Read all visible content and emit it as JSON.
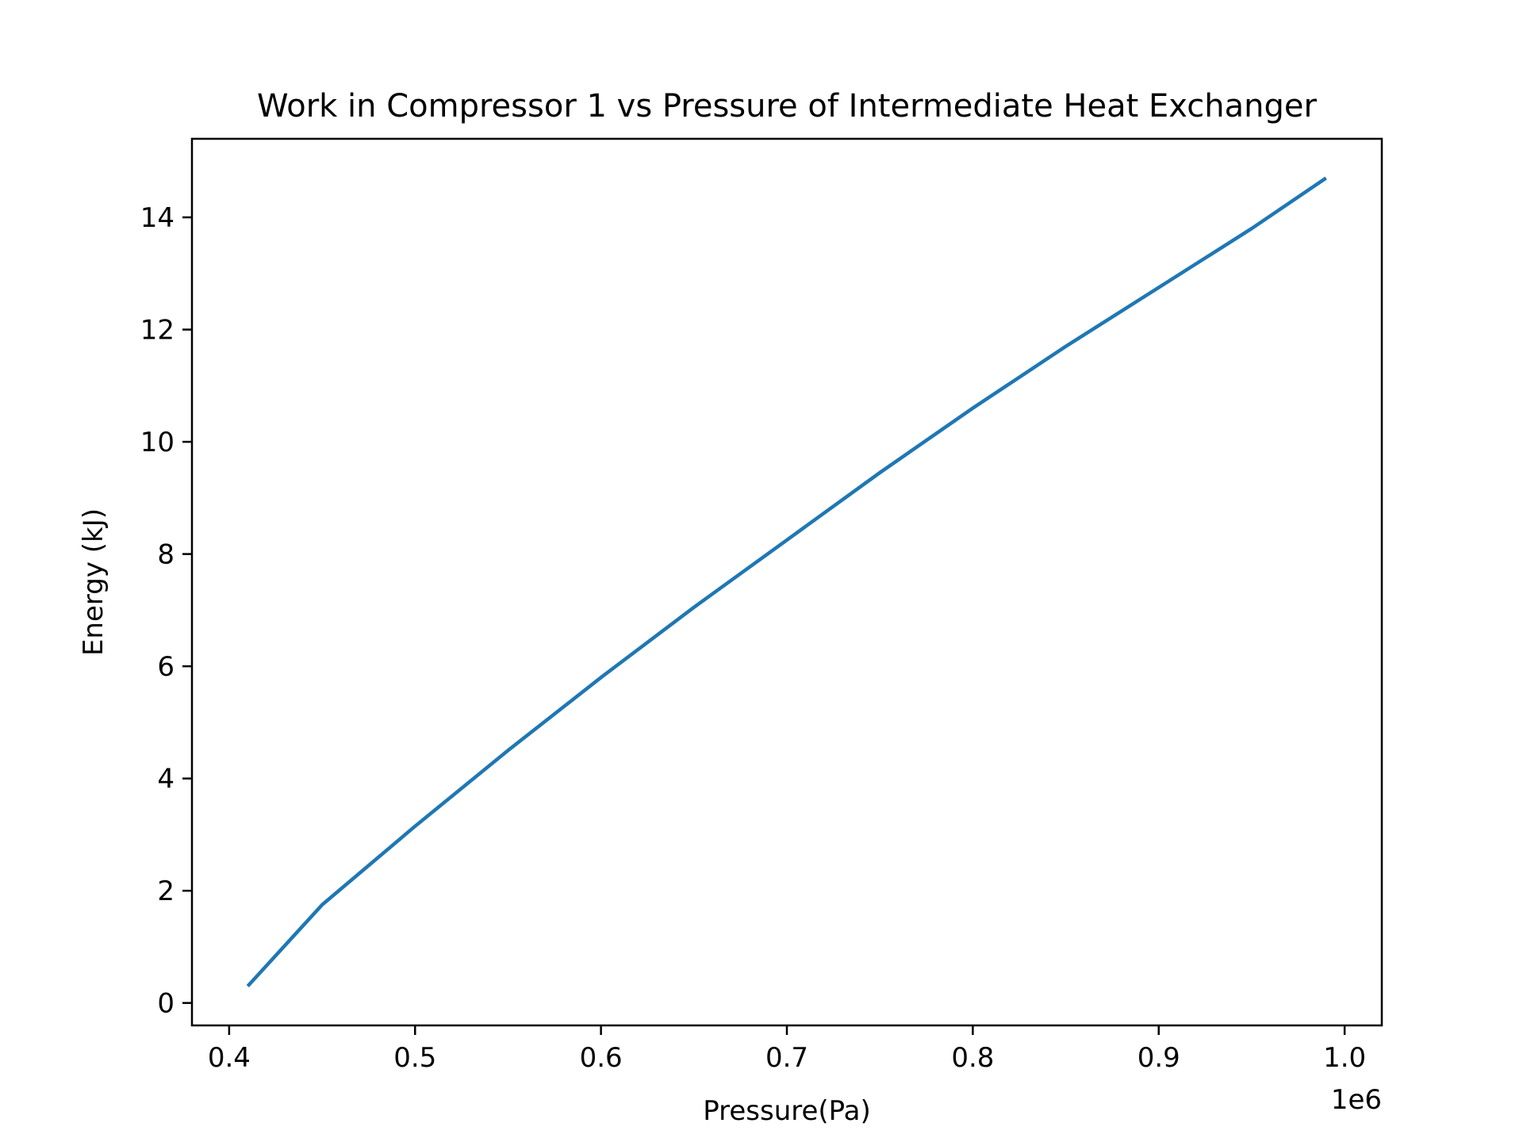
{
  "chart_data": {
    "type": "line",
    "title": "Work in Compressor 1 vs Pressure of Intermediate Heat Exchanger",
    "xlabel": "Pressure(Pa)",
    "ylabel": "Energy (kJ)",
    "x_offset_label": "1e6",
    "xlim": [
      380000,
      1020000
    ],
    "ylim": [
      -0.4,
      15.4
    ],
    "x_ticks": [
      400000,
      500000,
      600000,
      700000,
      800000,
      900000,
      1000000
    ],
    "x_tick_labels": [
      "0.4",
      "0.5",
      "0.6",
      "0.7",
      "0.8",
      "0.9",
      "1.0"
    ],
    "y_ticks": [
      0,
      2,
      4,
      6,
      8,
      10,
      12,
      14
    ],
    "y_tick_labels": [
      "0",
      "2",
      "4",
      "6",
      "8",
      "10",
      "12",
      "14"
    ],
    "grid": false,
    "line_color": "#1f77b4",
    "series": [
      {
        "x": [
          410000,
          450000,
          500000,
          550000,
          600000,
          650000,
          700000,
          750000,
          800000,
          850000,
          900000,
          950000,
          990000
        ],
        "y": [
          0.3,
          1.75,
          3.15,
          4.5,
          5.8,
          7.05,
          8.25,
          9.45,
          10.6,
          11.7,
          12.75,
          13.8,
          14.7
        ]
      }
    ]
  }
}
